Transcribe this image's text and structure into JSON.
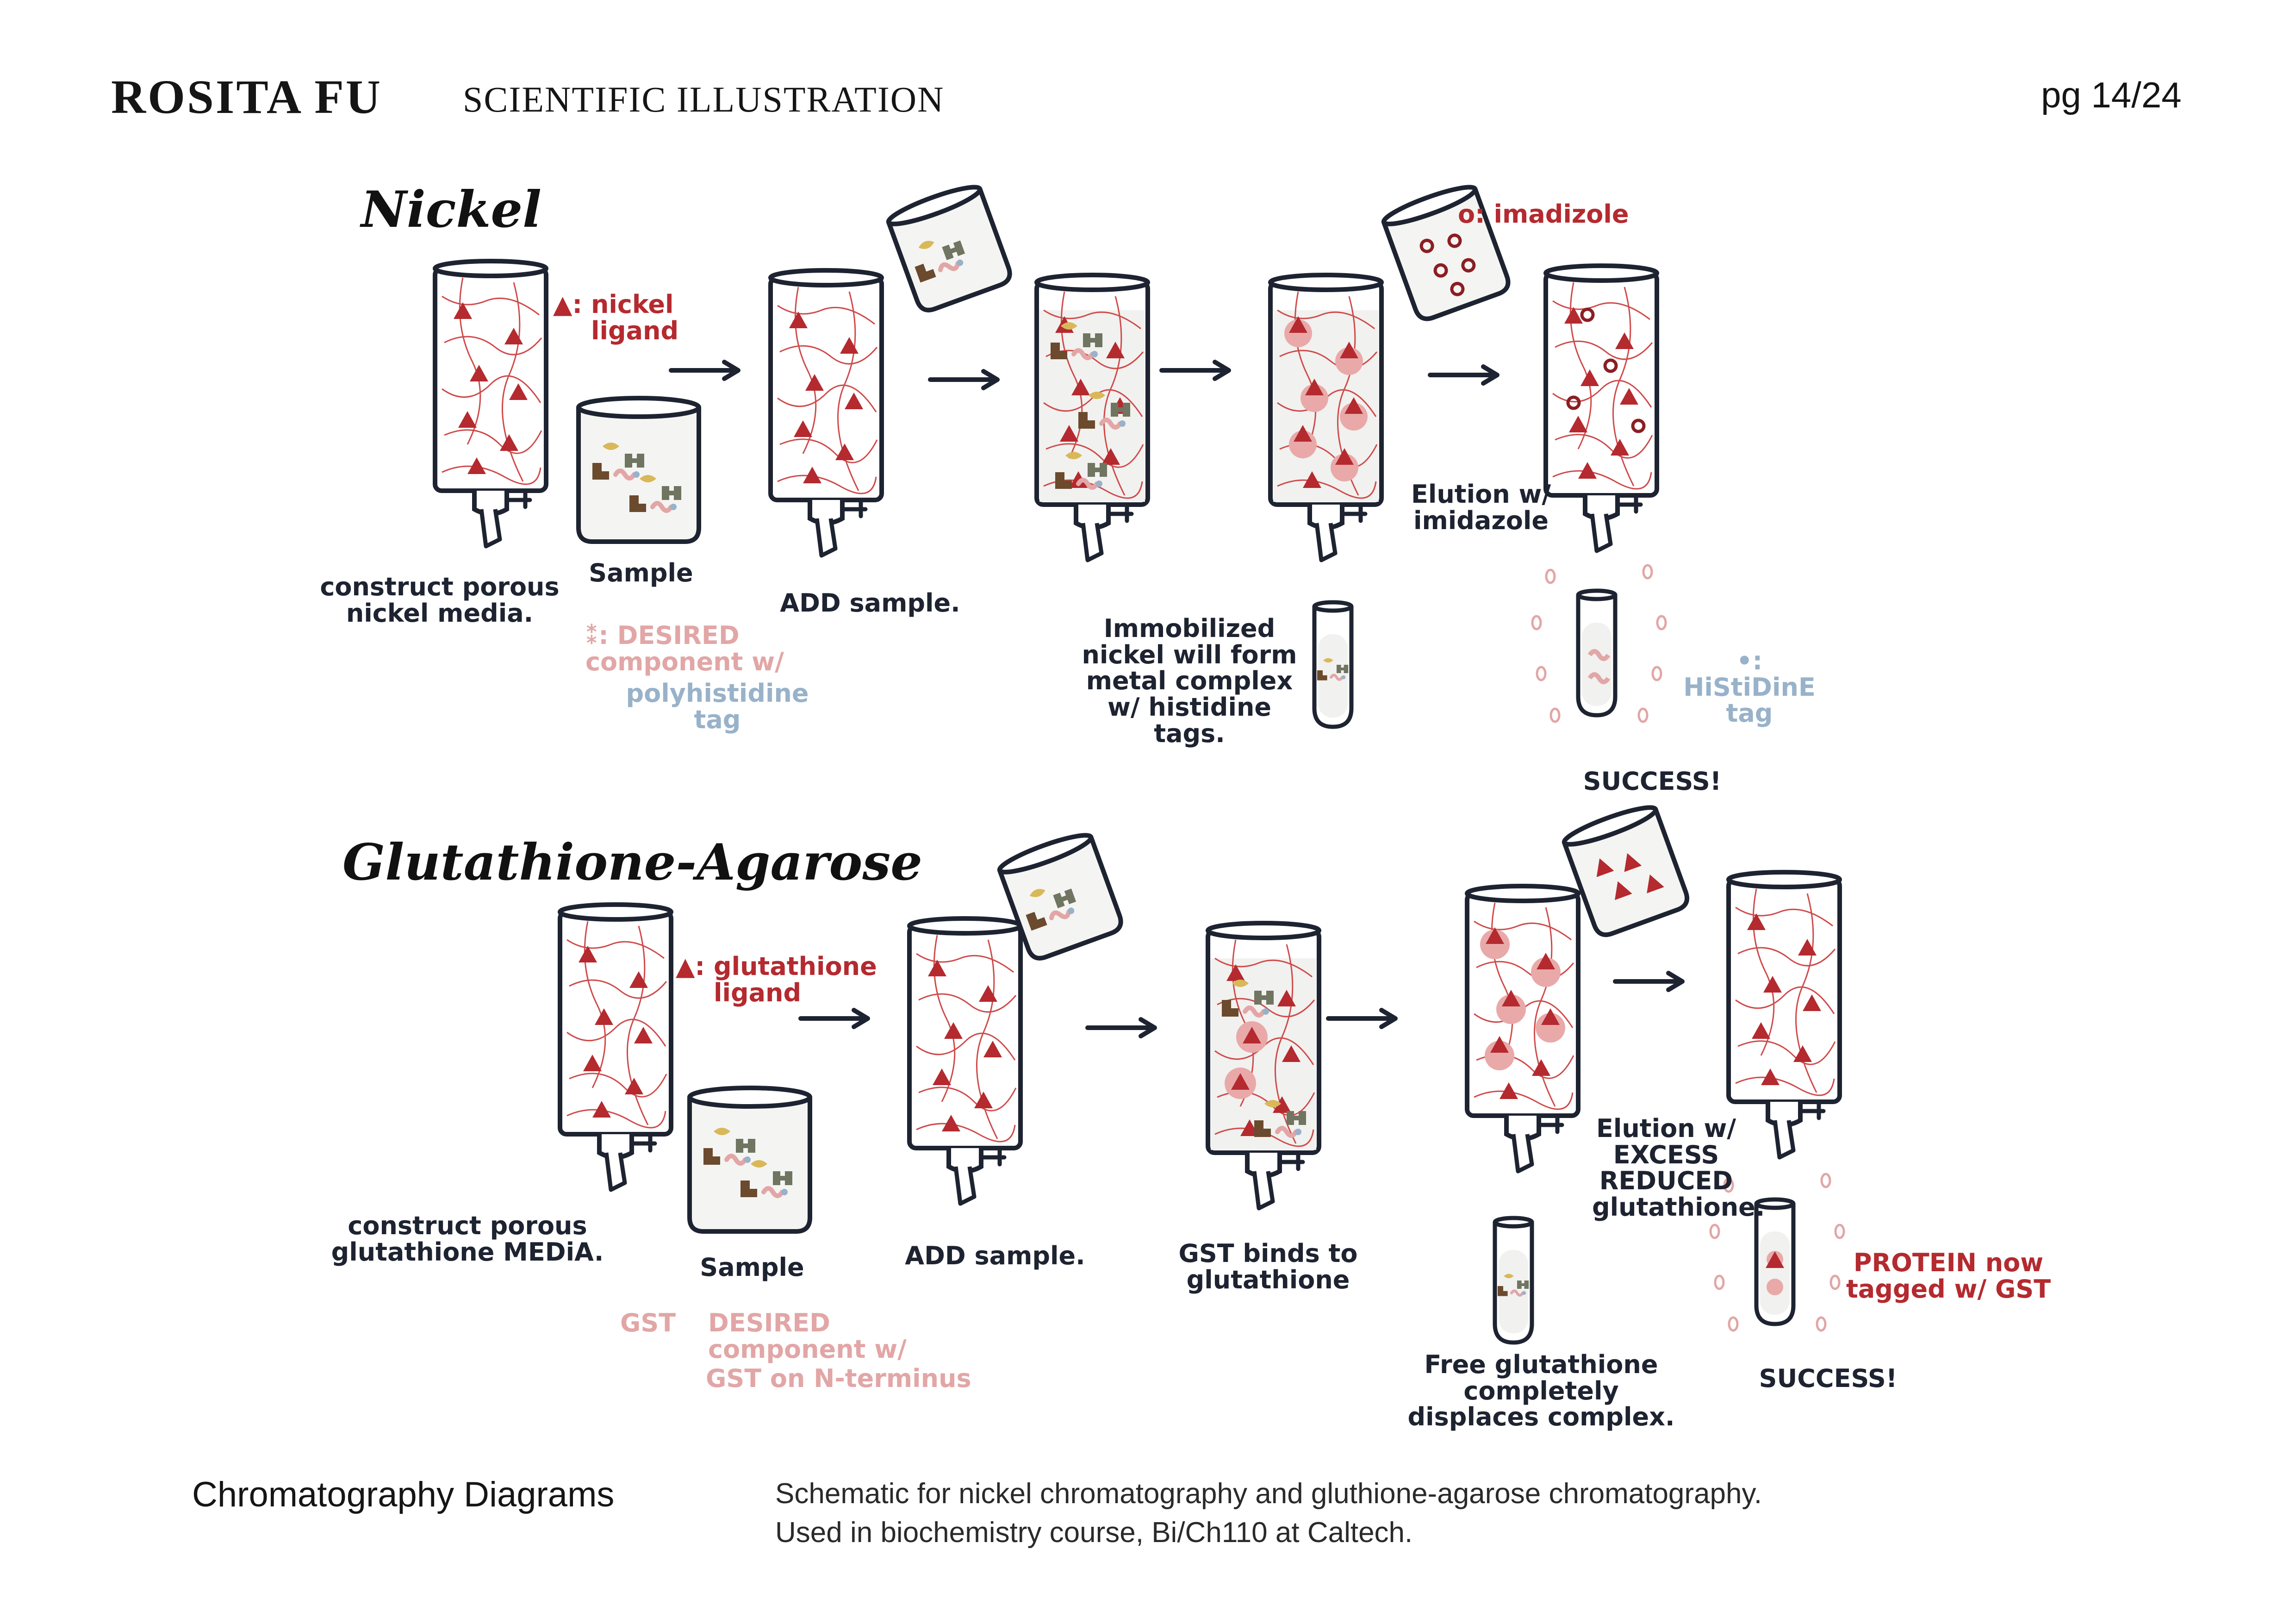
{
  "header": {
    "brand": "ROSITA FU",
    "subtitle": "SCIENTIFIC ILLUSTRATION",
    "page": "pg 14/24"
  },
  "nickel": {
    "heading": "Nickel",
    "legend_ligand_symbol": "▲:",
    "legend_ligand": "nickel ligand",
    "step1_caption": "construct porous nickel media.",
    "sample_label": "Sample",
    "desired_symbol": "⁑:",
    "desired_label": "DESIRED component w/",
    "polyhis_label": "polyhistidine tag",
    "step2_caption": "ADD sample.",
    "step4_caption": "Immobilized nickel will form metal complex w/ histidine tags.",
    "imidazole_legend": "o: imadizole",
    "elution_label": "Elution w/ imidazole",
    "histidine_legend": "•: HiStiDinE tag",
    "success": "SUCCESS!"
  },
  "gst": {
    "heading": "Glutathione-Agarose",
    "legend_ligand_symbol": "▲:",
    "legend_ligand": "glutathione ligand",
    "step1_caption": "construct porous glutathione MEDiA.",
    "sample_label": "Sample",
    "desired_label": "DESIRED component w/",
    "gst_terminus": "GST on N-terminus",
    "gst_tag": "GST",
    "step2_caption": "ADD sample.",
    "step3_caption": "GST binds to glutathione",
    "free_caption": "Free glutathione completely displaces complex.",
    "elution_label": "Elution w/ EXCESS REDUCED glutathione.",
    "protein_label": "PROTEIN now tagged w/ GST",
    "success": "SUCCESS!"
  },
  "footer": {
    "title": "Chromatography Diagrams",
    "desc_line1": "Schematic for nickel chromatography and gluthione-agarose chromatography.",
    "desc_line2": "Used in biochemistry course, Bi/Ch110 at Caltech."
  },
  "colors": {
    "ink": "#1e2331",
    "ligand_red": "#b42a2f",
    "pink": "#e2a6a6",
    "tag_blue": "#98b2c9",
    "column_fill": "#f1f1ef",
    "protein_yellow": "#d9b85a",
    "protein_brown": "#6b4a2e",
    "protein_olive": "#6f7560"
  }
}
